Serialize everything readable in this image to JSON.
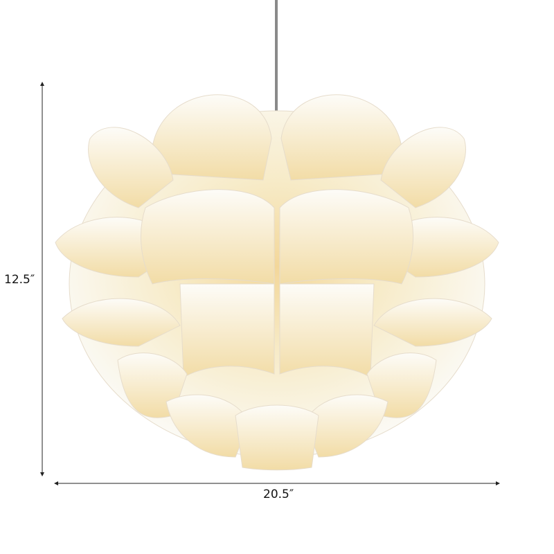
{
  "product": {
    "height_label": "12.5″",
    "width_label": "20.5″"
  },
  "colors": {
    "glow": "#f6dfa6",
    "petal_edge": "#fbf9f4",
    "cord": "#8a8a8a",
    "dimension_line": "#222222"
  }
}
